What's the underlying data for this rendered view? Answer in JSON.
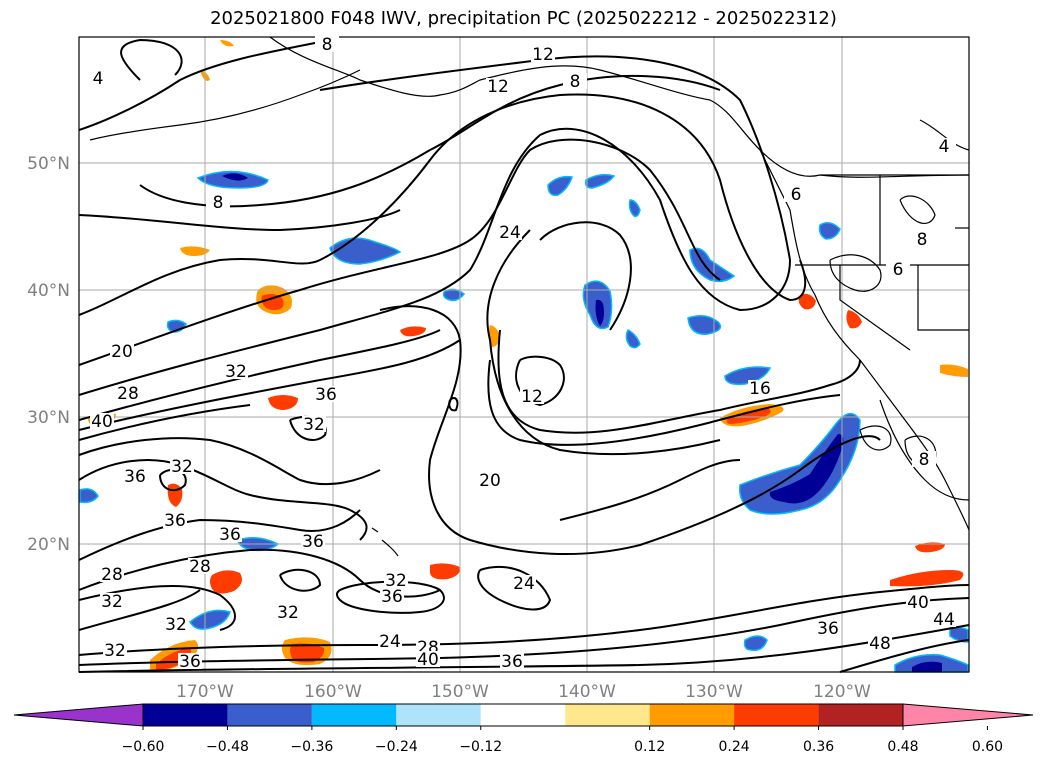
{
  "title": "2025021800 F048 IWV, precipitation PC (2025022212 - 2025022312)",
  "lat_labels": [
    "50°N",
    "40°N",
    "30°N",
    "20°N"
  ],
  "lon_labels": [
    "170°W",
    "160°W",
    "150°W",
    "140°W",
    "130°W",
    "120°W"
  ],
  "colorbar": {
    "ticks": [
      "−0.60",
      "−0.48",
      "−0.36",
      "−0.24",
      "−0.12",
      "0.12",
      "0.24",
      "0.36",
      "0.48",
      "0.60"
    ],
    "colors": [
      "#9a33cc",
      "#000096",
      "#3a5fcd",
      "#00b9ff",
      "#aee3fa",
      "#ffffff",
      "#ffe88c",
      "#ff9c00",
      "#ff3c00",
      "#b22222",
      "#ff85a8"
    ]
  },
  "contour_labels": [
    {
      "text": "8"
    },
    {
      "text": "12"
    },
    {
      "text": "8"
    },
    {
      "text": "12"
    },
    {
      "text": "4"
    },
    {
      "text": "8"
    },
    {
      "text": "24"
    },
    {
      "text": "20"
    },
    {
      "text": "28"
    },
    {
      "text": "32"
    },
    {
      "text": "36"
    },
    {
      "text": "12"
    },
    {
      "text": "40"
    },
    {
      "text": "32"
    },
    {
      "text": "16"
    },
    {
      "text": "32"
    },
    {
      "text": "36"
    },
    {
      "text": "20"
    },
    {
      "text": "36"
    },
    {
      "text": "36"
    },
    {
      "text": "36"
    },
    {
      "text": "28"
    },
    {
      "text": "28"
    },
    {
      "text": "32"
    },
    {
      "text": "36"
    },
    {
      "text": "32"
    },
    {
      "text": "24"
    },
    {
      "text": "32"
    },
    {
      "text": "32"
    },
    {
      "text": "24"
    },
    {
      "text": "28"
    },
    {
      "text": "40"
    },
    {
      "text": "36"
    },
    {
      "text": "32"
    },
    {
      "text": "36"
    },
    {
      "text": "40"
    },
    {
      "text": "44"
    },
    {
      "text": "36"
    },
    {
      "text": "48"
    },
    {
      "text": "4"
    },
    {
      "text": "6"
    },
    {
      "text": "8"
    },
    {
      "text": "6"
    },
    {
      "text": "8"
    }
  ]
}
